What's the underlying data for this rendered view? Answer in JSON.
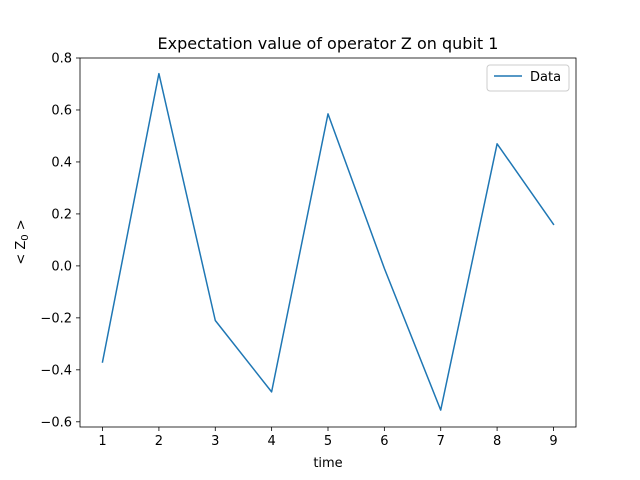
{
  "chart_data": {
    "type": "line",
    "title": "Expectation value of operator Z on qubit 1",
    "xlabel": "time",
    "ylabel": {
      "main": "< Z",
      "sub": "0",
      "close": " >"
    },
    "x": [
      1,
      2,
      3,
      4,
      5,
      6,
      7,
      8,
      9
    ],
    "series": [
      {
        "name": "Data",
        "values": [
          -0.37,
          0.74,
          -0.21,
          -0.485,
          0.585,
          -0.01,
          -0.555,
          0.47,
          0.16
        ],
        "color": "#1f77b4"
      }
    ],
    "xlim": [
      0.6,
      9.4
    ],
    "ylim": [
      -0.62,
      0.8
    ],
    "xticks": [
      1,
      2,
      3,
      4,
      5,
      6,
      7,
      8,
      9
    ],
    "yticks": [
      -0.6,
      -0.4,
      -0.2,
      0.0,
      0.2,
      0.4,
      0.6,
      0.8
    ],
    "ytick_labels": [
      "−0.6",
      "−0.4",
      "−0.2",
      "0.0",
      "0.2",
      "0.4",
      "0.6",
      "0.8"
    ],
    "grid": false,
    "legend_position": "top-right"
  }
}
